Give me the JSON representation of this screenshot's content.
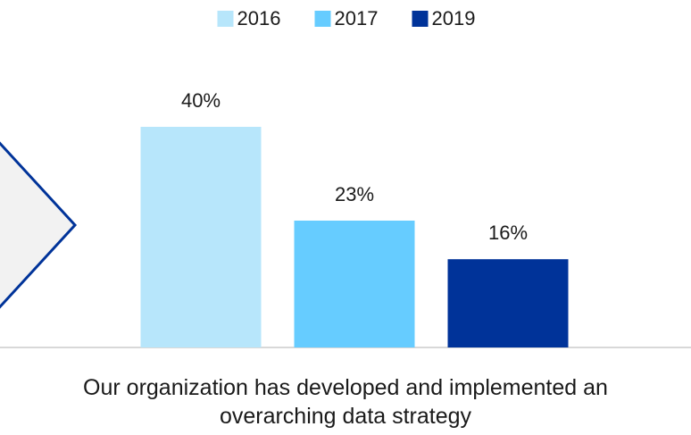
{
  "chart_data": {
    "type": "bar",
    "categories": [
      "Our organization has developed and implemented an overarching data strategy"
    ],
    "series": [
      {
        "name": "2016",
        "color": "#b7e6fb",
        "values": [
          40
        ],
        "value_labels": [
          "40%"
        ]
      },
      {
        "name": "2017",
        "color": "#66ccff",
        "values": [
          23
        ],
        "value_labels": [
          "23%"
        ]
      },
      {
        "name": "2019",
        "color": "#003399",
        "values": [
          16
        ],
        "value_labels": [
          "16%"
        ]
      }
    ],
    "ylim": [
      0,
      40
    ],
    "legend": "top"
  }
}
